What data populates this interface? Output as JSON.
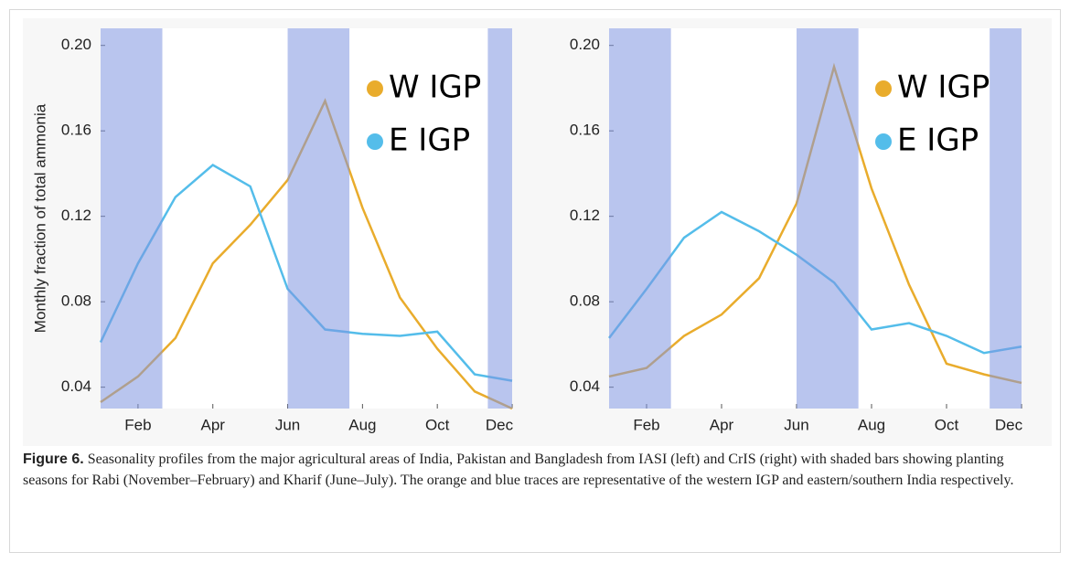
{
  "chart_data": [
    {
      "type": "line",
      "y_label": "Monthly fraction of total ammonia",
      "x": [
        1,
        2,
        3,
        4,
        5,
        6,
        7,
        8,
        9,
        10,
        11,
        12
      ],
      "xlim": [
        1,
        12
      ],
      "xticks": [
        {
          "value": 2,
          "label": "Feb"
        },
        {
          "value": 4,
          "label": "Apr"
        },
        {
          "value": 6,
          "label": "Jun"
        },
        {
          "value": 8,
          "label": "Aug"
        },
        {
          "value": 10,
          "label": "Oct"
        },
        {
          "value": 12,
          "label": "Dec"
        }
      ],
      "ylim": [
        0.03,
        0.208
      ],
      "yticks": [
        0.04,
        0.08,
        0.12,
        0.16,
        {
          "value": 0.2,
          "label": "0.20"
        }
      ],
      "shaded_ranges": [
        [
          1,
          2.65
        ],
        [
          6,
          7.65
        ],
        [
          11.35,
          12
        ]
      ],
      "shade_color": "#7f95e0",
      "legend": "upper right",
      "series": [
        {
          "name": "W IGP",
          "color": "#e9ac2c",
          "values": [
            0.033,
            0.045,
            0.063,
            0.098,
            0.116,
            0.137,
            0.174,
            0.124,
            0.082,
            0.058,
            0.038,
            0.03
          ]
        },
        {
          "name": "E IGP",
          "color": "#54bdea",
          "values": [
            0.061,
            0.098,
            0.129,
            0.144,
            0.134,
            0.086,
            0.067,
            0.065,
            0.064,
            0.066,
            0.046,
            0.043
          ]
        }
      ]
    },
    {
      "type": "line",
      "x": [
        1,
        2,
        3,
        4,
        5,
        6,
        7,
        8,
        9,
        10,
        11,
        12
      ],
      "xlim": [
        1,
        12
      ],
      "xticks": [
        {
          "value": 2,
          "label": "Feb"
        },
        {
          "value": 4,
          "label": "Apr"
        },
        {
          "value": 6,
          "label": "Jun"
        },
        {
          "value": 8,
          "label": "Aug"
        },
        {
          "value": 10,
          "label": "Oct"
        },
        {
          "value": 12,
          "label": "Dec"
        }
      ],
      "ylim": [
        0.03,
        0.208
      ],
      "yticks": [
        0.04,
        0.08,
        0.12,
        0.16,
        {
          "value": 0.2,
          "label": "0.20"
        }
      ],
      "shaded_ranges": [
        [
          1,
          2.65
        ],
        [
          6,
          7.65
        ],
        [
          11.15,
          12
        ]
      ],
      "shade_color": "#7f95e0",
      "legend": "upper right",
      "series": [
        {
          "name": "W IGP",
          "color": "#e9ac2c",
          "values": [
            0.045,
            0.049,
            0.064,
            0.074,
            0.091,
            0.126,
            0.19,
            0.133,
            0.088,
            0.051,
            0.046,
            0.042
          ]
        },
        {
          "name": "E IGP",
          "color": "#54bdea",
          "values": [
            0.063,
            0.086,
            0.11,
            0.122,
            0.113,
            0.102,
            0.089,
            0.067,
            0.07,
            0.064,
            0.056,
            0.059
          ]
        }
      ]
    }
  ],
  "caption": {
    "label": "Figure 6.",
    "text": "Seasonality profiles from the major agricultural areas of India, Pakistan and Bangladesh from IASI (left) and CrIS (right) with shaded bars showing planting seasons for Rabi (November–February) and Kharif (June–July). The orange and blue traces are representative of the western IGP and eastern/southern India respectively."
  }
}
